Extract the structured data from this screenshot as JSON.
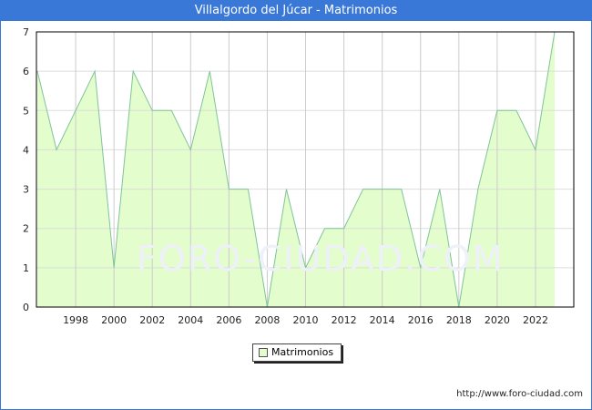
{
  "chart_data": {
    "type": "area",
    "title": "Villalgordo del Júcar - Matrimonios",
    "x": [
      1996,
      1997,
      1998,
      1999,
      2000,
      2001,
      2002,
      2003,
      2004,
      2005,
      2006,
      2007,
      2008,
      2009,
      2010,
      2011,
      2012,
      2013,
      2014,
      2015,
      2016,
      2017,
      2018,
      2019,
      2020,
      2021,
      2022,
      2023
    ],
    "series": [
      {
        "name": "Matrimonios",
        "values": [
          6,
          4,
          5,
          6,
          1,
          6,
          5,
          5,
          4,
          6,
          3,
          3,
          0,
          3,
          1,
          2,
          2,
          3,
          3,
          3,
          1,
          3,
          0,
          3,
          5,
          5,
          4,
          7
        ]
      }
    ],
    "xticks": [
      "1998",
      "2000",
      "2002",
      "2004",
      "2006",
      "2008",
      "2010",
      "2012",
      "2014",
      "2016",
      "2018",
      "2020",
      "2022"
    ],
    "yticks": [
      "0",
      "1",
      "2",
      "3",
      "4",
      "5",
      "6",
      "7"
    ],
    "ylim": [
      0,
      7
    ],
    "xlabel": "",
    "ylabel": "",
    "grid": true,
    "legend_placement": "bottom-center",
    "colors": {
      "fill": "#e3fdcc",
      "line": "#7fc39a",
      "title_bar": "#3a78d8"
    }
  },
  "watermark": "FORO-CIUDAD.COM",
  "footer_url": "http://www.foro-ciudad.com"
}
